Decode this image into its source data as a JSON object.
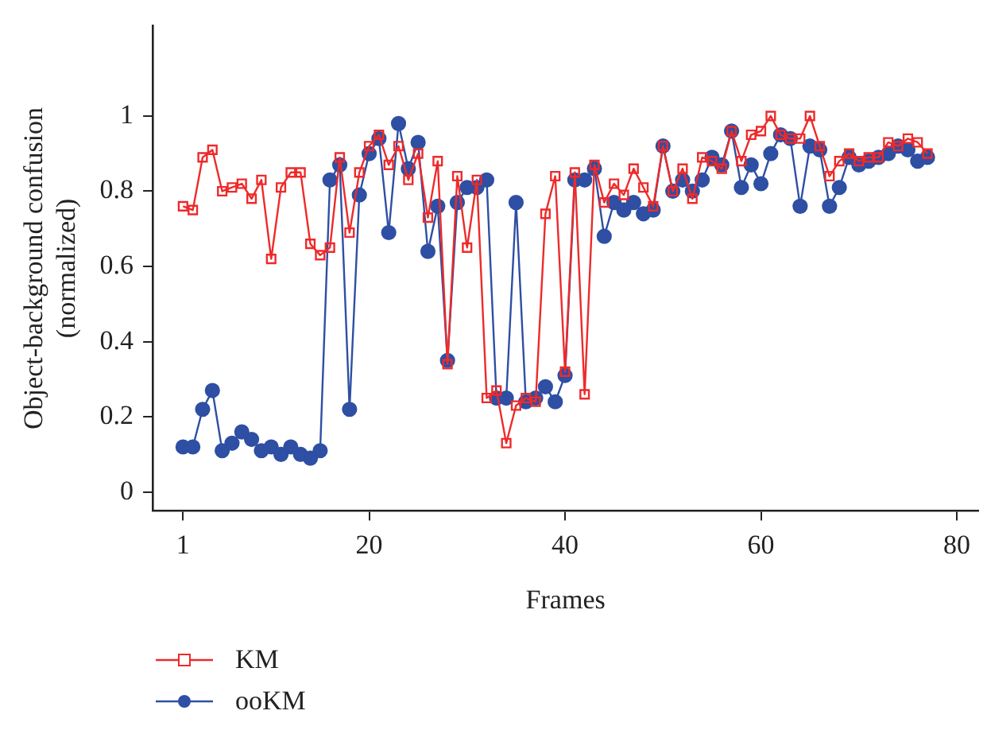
{
  "chart_data": {
    "type": "line",
    "xlabel": "Frames",
    "ylabel": "Object-background confusion\n(normalized)",
    "x": [
      1,
      2,
      3,
      4,
      5,
      6,
      7,
      8,
      9,
      10,
      11,
      12,
      13,
      14,
      15,
      16,
      17,
      18,
      19,
      20,
      21,
      22,
      23,
      24,
      25,
      26,
      27,
      28,
      29,
      30,
      31,
      32,
      33,
      34,
      35,
      36,
      37,
      38,
      39,
      40,
      41,
      42,
      43,
      44,
      45,
      46,
      47,
      48,
      49,
      50,
      51,
      52,
      53,
      54,
      55,
      56,
      57,
      58,
      59,
      60,
      61,
      62,
      63,
      64,
      65,
      66,
      67,
      68,
      69,
      70,
      71,
      72,
      73,
      74,
      75,
      76,
      77
    ],
    "series": [
      {
        "name": "KM",
        "color": "#ee2a2a",
        "marker": "square",
        "values": [
          0.76,
          0.75,
          0.89,
          0.91,
          0.8,
          0.81,
          0.82,
          0.78,
          0.83,
          0.62,
          0.81,
          0.85,
          0.85,
          0.66,
          0.63,
          0.65,
          0.89,
          0.69,
          0.85,
          0.92,
          0.95,
          0.87,
          0.92,
          0.83,
          0.9,
          0.73,
          0.88,
          0.34,
          0.84,
          0.65,
          0.83,
          0.25,
          0.27,
          0.13,
          0.23,
          0.25,
          0.24,
          0.74,
          0.84,
          0.32,
          0.85,
          0.26,
          0.87,
          0.77,
          0.82,
          0.79,
          0.86,
          0.81,
          0.76,
          0.92,
          0.8,
          0.86,
          0.78,
          0.89,
          0.88,
          0.86,
          0.96,
          0.88,
          0.95,
          0.96,
          1.0,
          0.95,
          0.94,
          0.94,
          1.0,
          0.92,
          0.84,
          0.88,
          0.9,
          0.88,
          0.89,
          0.89,
          0.93,
          0.92,
          0.94,
          0.93,
          0.9
        ]
      },
      {
        "name": "ooKM",
        "color": "#2e4fa3",
        "marker": "circle",
        "values": [
          0.12,
          0.12,
          0.22,
          0.27,
          0.11,
          0.13,
          0.16,
          0.14,
          0.11,
          0.12,
          0.1,
          0.12,
          0.1,
          0.09,
          0.11,
          0.83,
          0.87,
          0.22,
          0.79,
          0.9,
          0.94,
          0.69,
          0.98,
          0.86,
          0.93,
          0.64,
          0.76,
          0.35,
          0.77,
          0.81,
          0.81,
          0.83,
          0.25,
          0.25,
          0.77,
          0.24,
          0.25,
          0.28,
          0.24,
          0.31,
          0.83,
          0.83,
          0.86,
          0.68,
          0.77,
          0.75,
          0.77,
          0.74,
          0.75,
          0.92,
          0.8,
          0.83,
          0.8,
          0.83,
          0.89,
          0.87,
          0.96,
          0.81,
          0.87,
          0.82,
          0.9,
          0.95,
          0.94,
          0.76,
          0.92,
          0.91,
          0.76,
          0.81,
          0.89,
          0.87,
          0.88,
          0.89,
          0.9,
          0.92,
          0.91,
          0.88,
          0.89
        ]
      }
    ],
    "xlim": [
      -2.1,
      82.2
    ],
    "xticks": [
      1,
      20,
      40,
      60,
      80
    ],
    "ylim": [
      -0.05,
      1.24
    ],
    "yticks": [
      0,
      {
        "value": 0.2,
        "label": "0.2"
      },
      {
        "value": 0.4,
        "label": "0.4"
      },
      {
        "value": 0.6,
        "label": "0.6"
      },
      {
        "value": 0.8,
        "label": "0.8"
      },
      1
    ],
    "grid": false,
    "legend": "bottom left",
    "line_style": "solid"
  }
}
